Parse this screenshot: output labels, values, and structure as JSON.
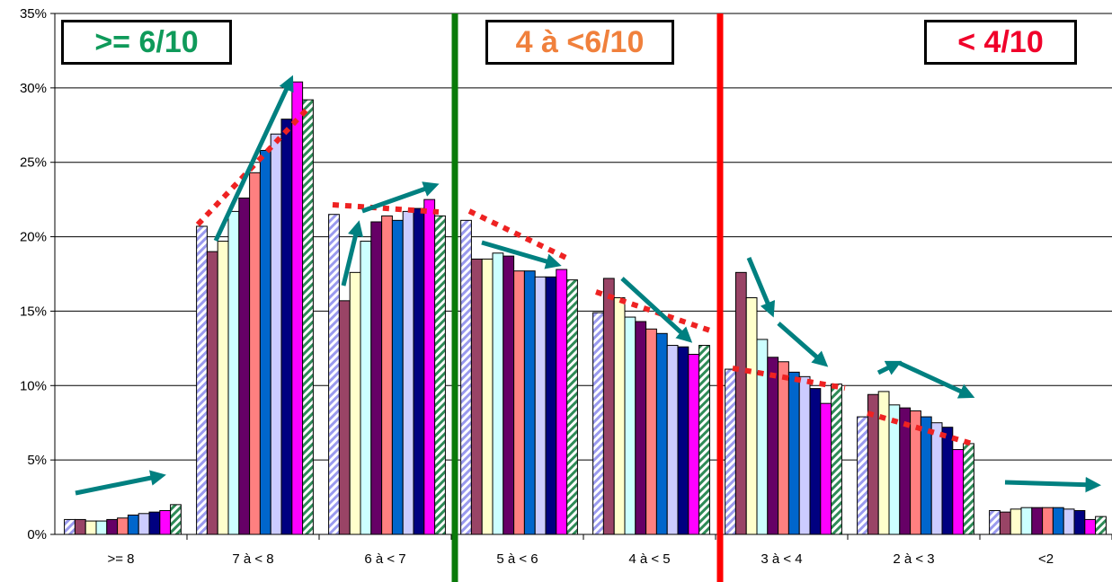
{
  "zones": [
    {
      "label": ">= 6/10",
      "color": "#0f9a5a"
    },
    {
      "label": "4 à <6/10",
      "color": "#f0803c"
    },
    {
      "label": "< 4/10",
      "color": "#f0002a"
    }
  ],
  "colors": {
    "green_divider": "#0a7a0a",
    "red_divider": "#ff0000",
    "trend_arrow": "#008080",
    "trend_dotted": "#ee2222"
  },
  "chart_data": {
    "type": "bar",
    "categories": [
      ">= 8",
      "7 à < 8",
      "6 à < 7",
      "5 à < 6",
      "4 à < 5",
      "3 à < 4",
      "2 à < 3",
      "<2"
    ],
    "ylim": [
      0,
      35
    ],
    "yticks": [
      "0%",
      "5%",
      "10%",
      "15%",
      "20%",
      "25%",
      "30%",
      "35%"
    ],
    "grid": true,
    "legend": "none",
    "series": [
      {
        "values": [
          1.0,
          20.7,
          21.5,
          21.1,
          14.9,
          11.1,
          7.9,
          1.6
        ],
        "fill": "#b8b8f0",
        "pattern": "hatch-blue"
      },
      {
        "values": [
          1.0,
          19.0,
          15.7,
          18.5,
          17.2,
          17.6,
          9.4,
          1.5
        ],
        "fill": "#994466"
      },
      {
        "values": [
          0.9,
          19.7,
          17.6,
          18.5,
          15.9,
          15.9,
          9.6,
          1.7
        ],
        "fill": "#ffffcc"
      },
      {
        "values": [
          0.9,
          21.7,
          19.7,
          18.9,
          14.6,
          13.1,
          8.7,
          1.8
        ],
        "fill": "#ccffff"
      },
      {
        "values": [
          1.0,
          22.6,
          21.0,
          18.7,
          14.3,
          11.9,
          8.5,
          1.8
        ],
        "fill": "#660066"
      },
      {
        "values": [
          1.1,
          24.3,
          21.4,
          17.7,
          13.8,
          11.6,
          8.3,
          1.8
        ],
        "fill": "#ff8080"
      },
      {
        "values": [
          1.3,
          25.8,
          21.1,
          17.7,
          13.5,
          10.9,
          7.9,
          1.8
        ],
        "fill": "#0066cc"
      },
      {
        "values": [
          1.4,
          26.9,
          21.7,
          17.3,
          12.7,
          10.6,
          7.5,
          1.7
        ],
        "fill": "#ccccff"
      },
      {
        "values": [
          1.5,
          27.9,
          21.9,
          17.3,
          12.6,
          9.8,
          7.2,
          1.6
        ],
        "fill": "#000080"
      },
      {
        "values": [
          1.6,
          30.4,
          22.5,
          17.8,
          12.1,
          8.8,
          5.7,
          1.0
        ],
        "fill": "#ff00ff"
      },
      {
        "values": [
          2.0,
          29.2,
          21.4,
          17.1,
          12.7,
          10.1,
          6.1,
          1.2
        ],
        "fill": "#ffffff",
        "pattern": "hatch-green"
      }
    ]
  }
}
